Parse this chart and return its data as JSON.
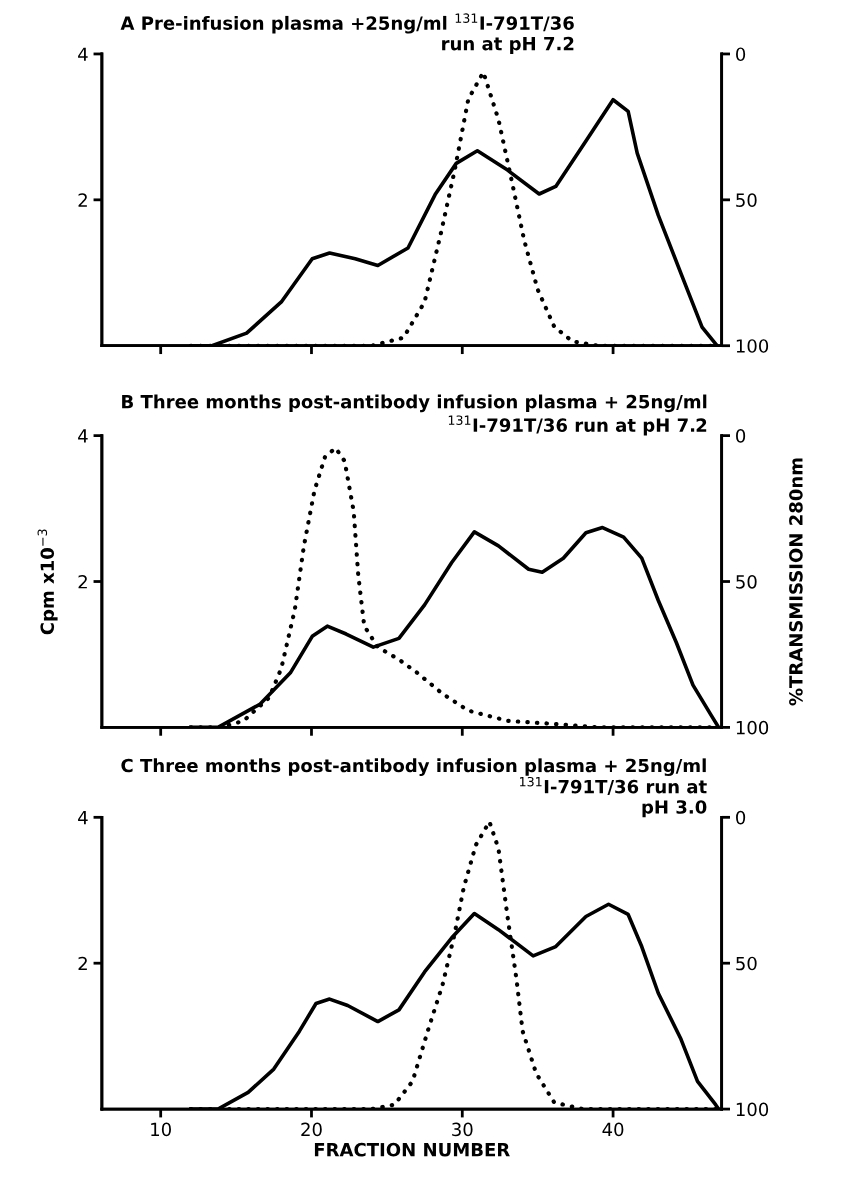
{
  "chart_data": [
    {
      "type": "line",
      "title": "A Pre-infusion plasma +25ng/ml $^{131}$I-791T/36\nrun at pH 7.2",
      "xlim": [
        6.1,
        47.2
      ],
      "xticks": [
        10,
        20,
        30,
        40
      ],
      "ylim": [
        0,
        4
      ],
      "yticks": [
        2,
        4
      ],
      "y2lim": [
        100,
        0
      ],
      "y2ticks": [
        0,
        50,
        100
      ],
      "tick_labels": "y",
      "grid": false,
      "legend": false,
      "series": [
        {
          "color": "#000000",
          "line_style": "dotted",
          "x": [
            12,
            14,
            16,
            18,
            20,
            22,
            24,
            26.1,
            27.5,
            28.6,
            29.5,
            30.4,
            31.4,
            32.4,
            33.3,
            34.1,
            35.0,
            36.1,
            37.3,
            39,
            41,
            43,
            45,
            47
          ],
          "values": [
            0,
            0,
            0,
            0,
            0,
            0,
            0,
            0.11,
            0.6,
            1.56,
            2.41,
            3.38,
            3.75,
            3.1,
            2.24,
            1.45,
            0.77,
            0.26,
            0.06,
            0,
            0,
            0,
            0,
            0
          ]
        },
        {
          "color": "#000000",
          "line_style": "solid",
          "axis": "y2",
          "x": [
            12,
            13.4,
            15.7,
            18.0,
            20.05,
            21.2,
            22.9,
            24.4,
            26.4,
            28.2,
            29.6,
            31.0,
            33.0,
            35.1,
            36.2,
            38.2,
            40.0,
            41.0,
            41.6,
            43.0,
            44.5,
            45.9,
            46.9
          ],
          "values": [
            100,
            100,
            95.7,
            85,
            70.2,
            68.2,
            70.2,
            72.5,
            66.5,
            48.2,
            37.5,
            33.2,
            39.8,
            48,
            45.4,
            29.8,
            15.7,
            19.7,
            34,
            55.3,
            75.2,
            93.6,
            100
          ]
        }
      ]
    },
    {
      "type": "line",
      "title": "B Three months post-antibody infusion plasma + 25ng/ml\n$^{131}$I-791T/36 run at pH 7.2",
      "ylabel": "Cpm x10$^{−3}$",
      "y2label": "%TRANSMISSION 280nm",
      "xlim": [
        6.1,
        47.2
      ],
      "xticks": [
        10,
        20,
        30,
        40
      ],
      "ylim": [
        0,
        4
      ],
      "yticks": [
        2,
        4
      ],
      "y2lim": [
        100,
        0
      ],
      "y2ticks": [
        0,
        50,
        100
      ],
      "tick_labels": "y",
      "grid": false,
      "legend": false,
      "series": [
        {
          "color": "#000000",
          "line_style": "dotted",
          "x": [
            12,
            14,
            15.5,
            17.2,
            18.0,
            18.9,
            19.5,
            20.2,
            20.9,
            21.6,
            22.2,
            22.8,
            23.1,
            23.5,
            24.4,
            25.8,
            27.0,
            28.7,
            30.4,
            33.0,
            35.9,
            39,
            42,
            45,
            47
          ],
          "values": [
            0,
            0,
            0.09,
            0.41,
            0.81,
            1.62,
            2.49,
            3.25,
            3.71,
            3.83,
            3.65,
            2.96,
            2.09,
            1.39,
            1.1,
            0.93,
            0.75,
            0.46,
            0.23,
            0.09,
            0.05,
            0,
            0,
            0,
            0
          ]
        },
        {
          "color": "#000000",
          "line_style": "solid",
          "axis": "y2",
          "x": [
            12,
            13.8,
            16.6,
            18.6,
            20.05,
            21.05,
            22.3,
            24.1,
            25.8,
            27.5,
            29.3,
            30.8,
            32.4,
            34.4,
            35.3,
            36.7,
            38.2,
            39.3,
            40.7,
            41.9,
            43.0,
            44.2,
            45.3,
            46.5,
            47.0
          ],
          "values": [
            100,
            100,
            92,
            81.3,
            68.8,
            65.3,
            68,
            72.5,
            69.5,
            58,
            43.5,
            33,
            37.8,
            45.8,
            46.8,
            42,
            33.3,
            31.5,
            34.8,
            42,
            56.5,
            71,
            85.5,
            95.8,
            100
          ]
        }
      ]
    },
    {
      "type": "line",
      "title": "C Three months post-antibody infusion plasma + 25ng/ml\n$^{131}$I-791T/36 run at\npH 3.0",
      "xlabel": "FRACTION NUMBER",
      "xlim": [
        6.1,
        47.2
      ],
      "xticks": [
        10,
        20,
        30,
        40
      ],
      "ylim": [
        0,
        4
      ],
      "yticks": [
        2,
        4
      ],
      "y2lim": [
        100,
        0
      ],
      "y2ticks": [
        0,
        50,
        100
      ],
      "grid": false,
      "legend": false,
      "series": [
        {
          "color": "#000000",
          "line_style": "dotted",
          "x": [
            12,
            15,
            18,
            21,
            24,
            25.5,
            26.7,
            27.8,
            28.7,
            29.5,
            30.1,
            30.9,
            31.8,
            32.4,
            33.0,
            33.6,
            34.0,
            34.9,
            36.1,
            38,
            41,
            44,
            47
          ],
          "values": [
            0,
            0,
            0,
            0,
            0,
            0.06,
            0.38,
            1.13,
            1.71,
            2.41,
            3.04,
            3.62,
            3.94,
            3.57,
            2.64,
            1.77,
            1.07,
            0.49,
            0.09,
            0,
            0,
            0,
            0
          ]
        },
        {
          "color": "#000000",
          "line_style": "solid",
          "axis": "y2",
          "x": [
            12,
            13.8,
            15.8,
            17.5,
            19.2,
            20.3,
            21.2,
            22.4,
            24.4,
            25.8,
            27.5,
            29.3,
            30.8,
            32.4,
            34.7,
            36.2,
            38.2,
            39.7,
            41.0,
            41.9,
            43.0,
            44.5,
            45.6,
            46.8,
            47.0
          ],
          "values": [
            100,
            100,
            94.3,
            86.3,
            73.3,
            63.8,
            62.3,
            64.5,
            70,
            66,
            53,
            41.3,
            33,
            38.5,
            47.5,
            44.3,
            34,
            29.8,
            33.3,
            44.3,
            60.3,
            76,
            90.5,
            98.5,
            100
          ]
        }
      ]
    }
  ]
}
